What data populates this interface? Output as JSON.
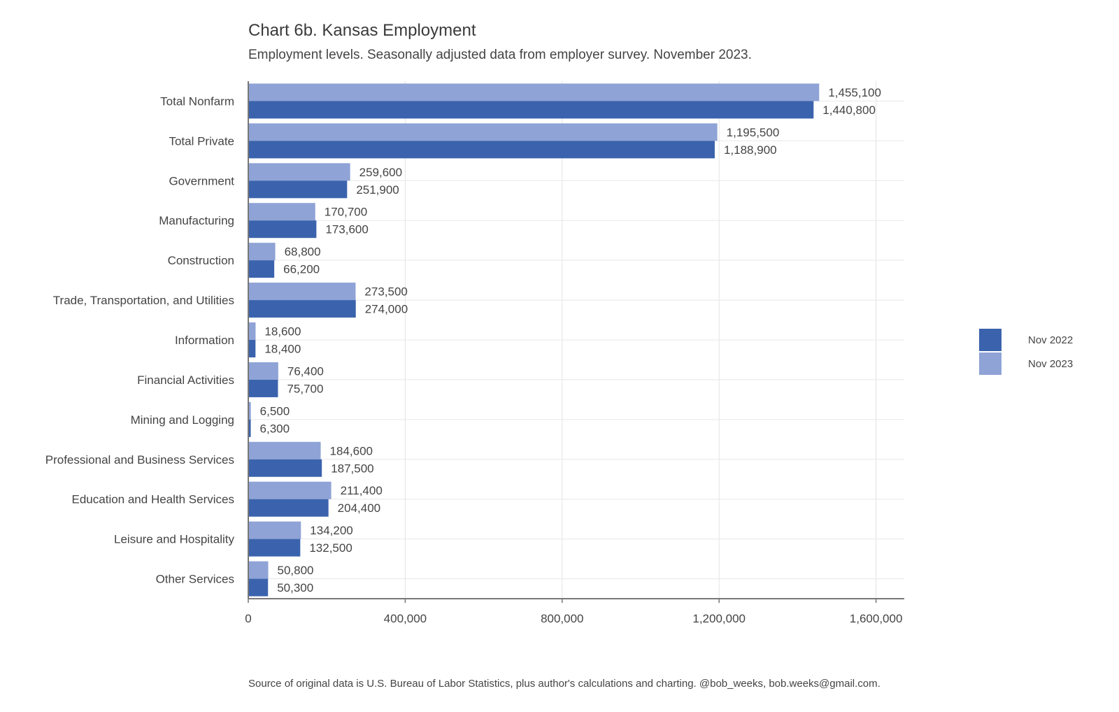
{
  "chart_data": {
    "type": "bar",
    "orientation": "horizontal",
    "title": "Chart 6b. Kansas Employment",
    "subtitle": "Employment levels. Seasonally adjusted data from employer survey. November 2023.",
    "source": "Source of original data is U.S. Bureau of Labor Statistics, plus author's calculations and charting. @bob_weeks, bob.weeks@gmail.com.",
    "categories": [
      "Total Nonfarm",
      "Total Private",
      "Government",
      "Manufacturing",
      "Construction",
      "Trade, Transportation, and Utilities",
      "Information",
      "Financial Activities",
      "Mining and Logging",
      "Professional and Business Services",
      "Education and Health Services",
      "Leisure and Hospitality",
      "Other Services"
    ],
    "series": [
      {
        "name": "Nov 2022",
        "color": "#3b63ad",
        "values": [
          1440800,
          1188900,
          251900,
          173600,
          66200,
          274000,
          18400,
          75700,
          6300,
          187500,
          204400,
          132500,
          50300
        ],
        "labels": [
          "1,440,800",
          "1,188,900",
          "251,900",
          "173,600",
          "66,200",
          "274,000",
          "18,400",
          "75,700",
          "6,300",
          "187,500",
          "204,400",
          "132,500",
          "50,300"
        ]
      },
      {
        "name": "Nov 2023",
        "color": "#8fa3d6",
        "values": [
          1455100,
          1195500,
          259600,
          170700,
          68800,
          273500,
          18600,
          76400,
          6500,
          184600,
          211400,
          134200,
          50800
        ],
        "labels": [
          "1,455,100",
          "1,195,500",
          "259,600",
          "170,700",
          "68,800",
          "273,500",
          "18,600",
          "76,400",
          "6,500",
          "184,600",
          "211,400",
          "134,200",
          "50,800"
        ]
      }
    ],
    "xlim": [
      0,
      1672000
    ],
    "xticks": [
      0,
      400000,
      800000,
      1200000,
      1600000
    ],
    "xtick_labels": [
      "0",
      "400,000",
      "800,000",
      "1,200,000",
      "1,600,000"
    ],
    "grid": true,
    "legend_position": "right"
  }
}
